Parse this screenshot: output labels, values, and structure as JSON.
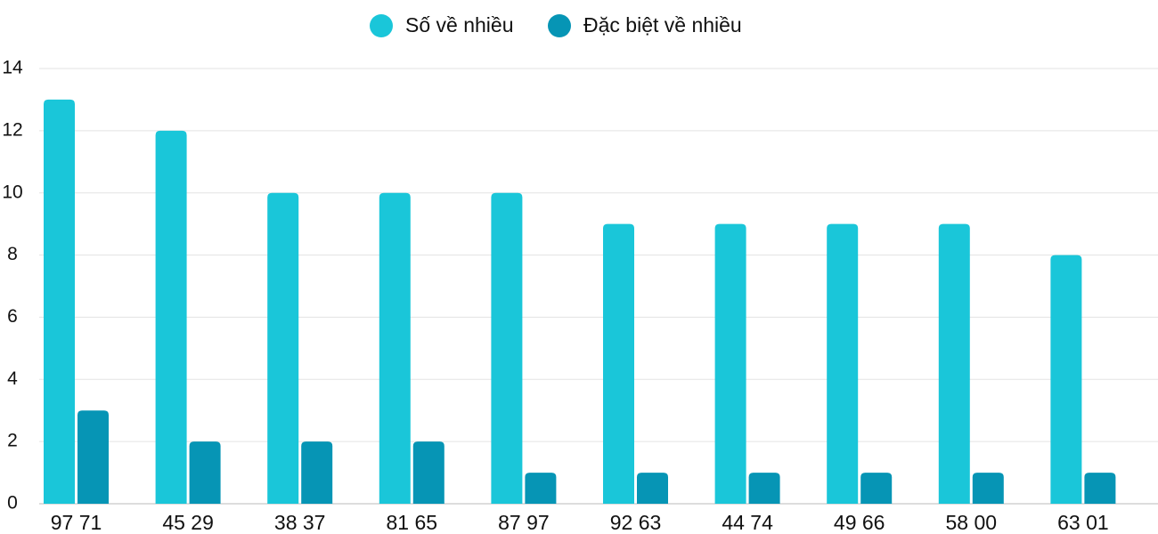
{
  "chart_data": {
    "type": "bar",
    "categories": [
      "97 71",
      "45 29",
      "38 37",
      "81 65",
      "87 97",
      "92 63",
      "44 74",
      "49 66",
      "58 00",
      "63 01"
    ],
    "series": [
      {
        "name": "Số về nhiều",
        "color": "#1ac6d9",
        "values": [
          13,
          12,
          10,
          10,
          10,
          9,
          9,
          9,
          9,
          8
        ]
      },
      {
        "name": "Đặc biệt về nhiều",
        "color": "#0695b5",
        "values": [
          3,
          2,
          2,
          2,
          1,
          1,
          1,
          1,
          1,
          1
        ]
      }
    ],
    "ylim": [
      0,
      14
    ],
    "yticks": [
      0,
      2,
      4,
      6,
      8,
      10,
      12,
      14
    ],
    "grid": true,
    "legend": "top"
  }
}
